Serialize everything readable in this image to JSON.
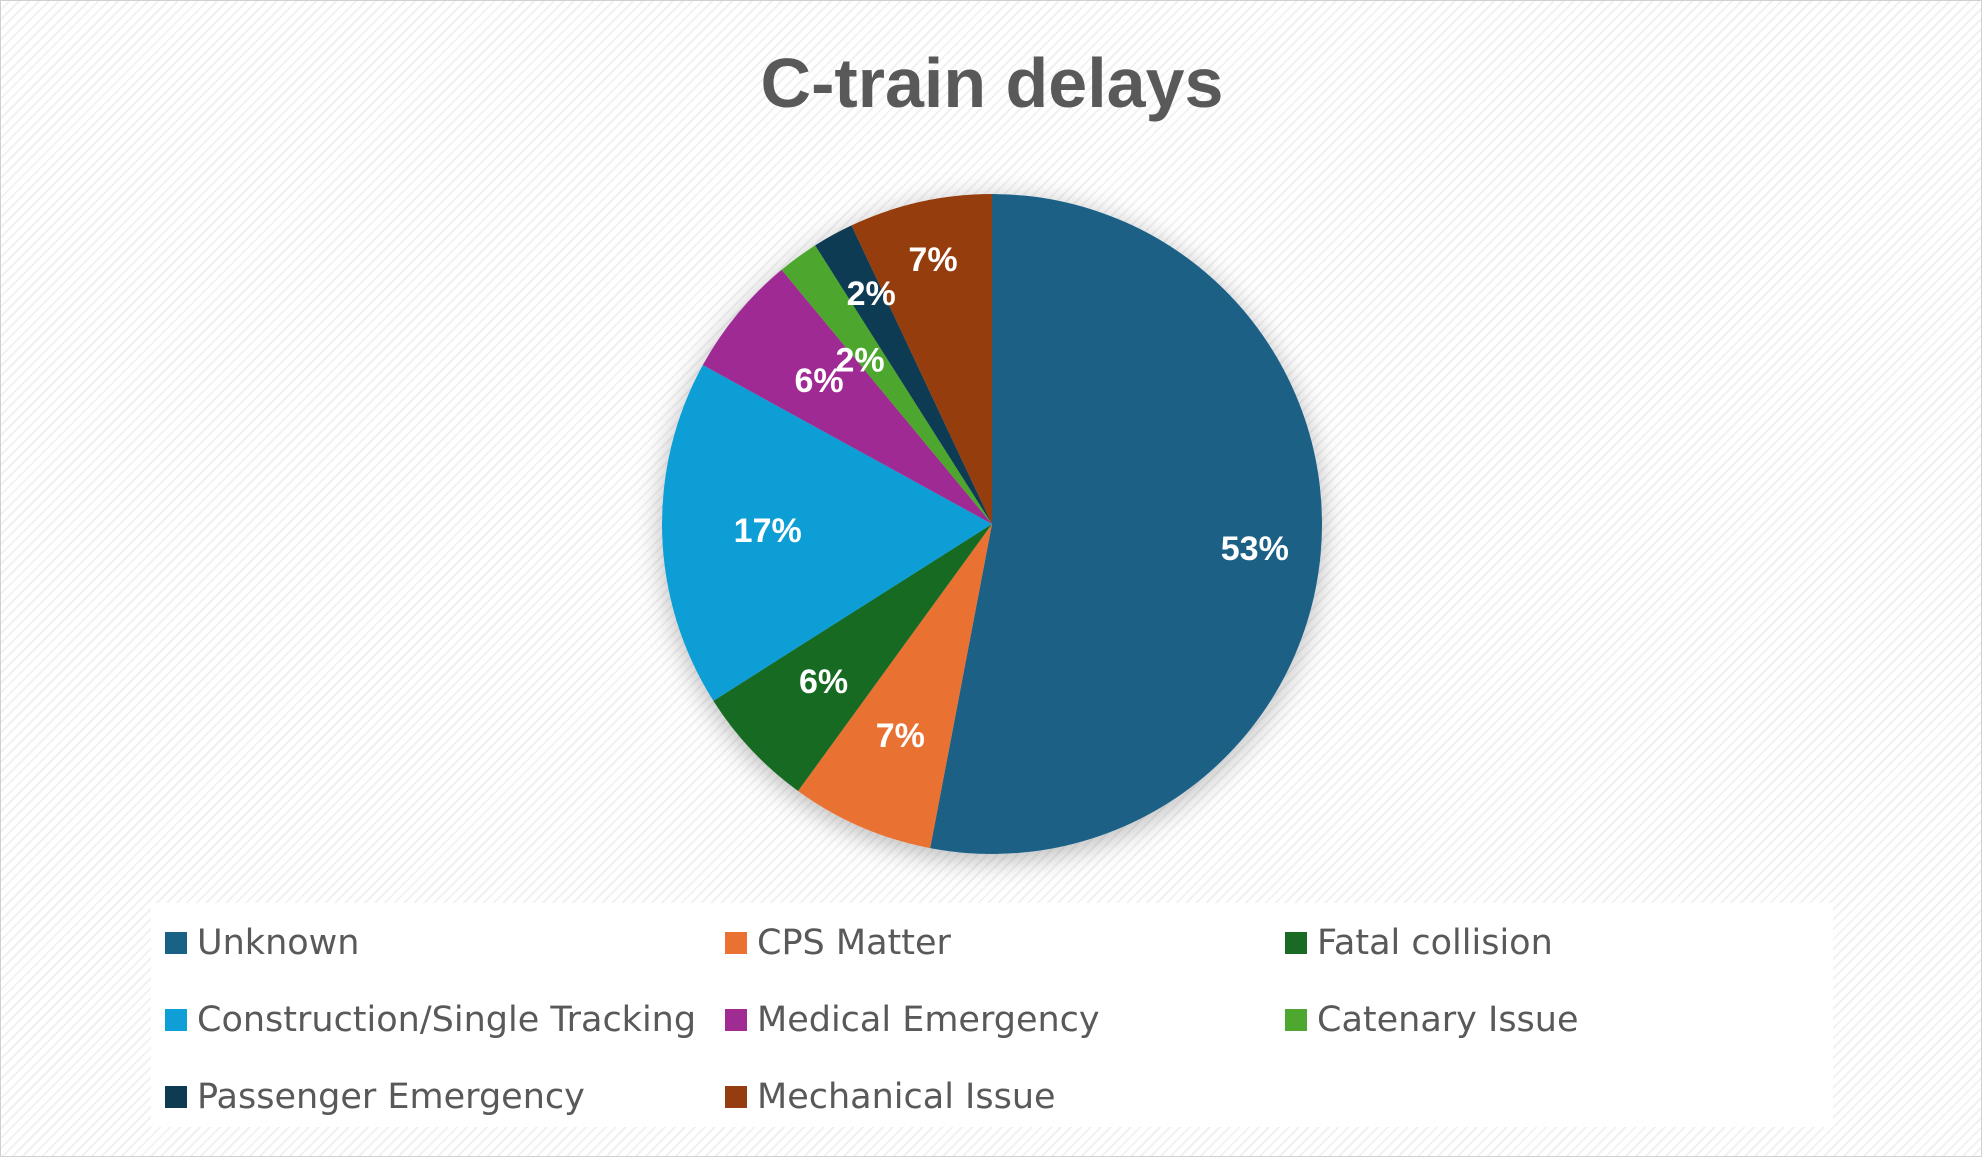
{
  "chart_data": {
    "type": "pie",
    "title": "C-train delays",
    "slices": [
      {
        "name": "Unknown",
        "value": 53,
        "label": "53%",
        "color": "#1A6186"
      },
      {
        "name": "CPS Matter",
        "value": 7,
        "label": "7%",
        "color": "#E97132"
      },
      {
        "name": "Fatal collision",
        "value": 6,
        "label": "6%",
        "color": "#196B24"
      },
      {
        "name": "Construction/Single Tracking",
        "value": 17,
        "label": "17%",
        "color": "#0F9ED5"
      },
      {
        "name": "Medical Emergency",
        "value": 6,
        "label": "6%",
        "color": "#A02B93"
      },
      {
        "name": "Catenary Issue",
        "value": 2,
        "label": "2%",
        "color": "#4EA72E"
      },
      {
        "name": "Passenger Emergency",
        "value": 2,
        "label": "2%",
        "color": "#0E3A52"
      },
      {
        "name": "Mechanical Issue",
        "value": 7,
        "label": "7%",
        "color": "#963C11"
      }
    ],
    "legend_position": "bottom"
  }
}
